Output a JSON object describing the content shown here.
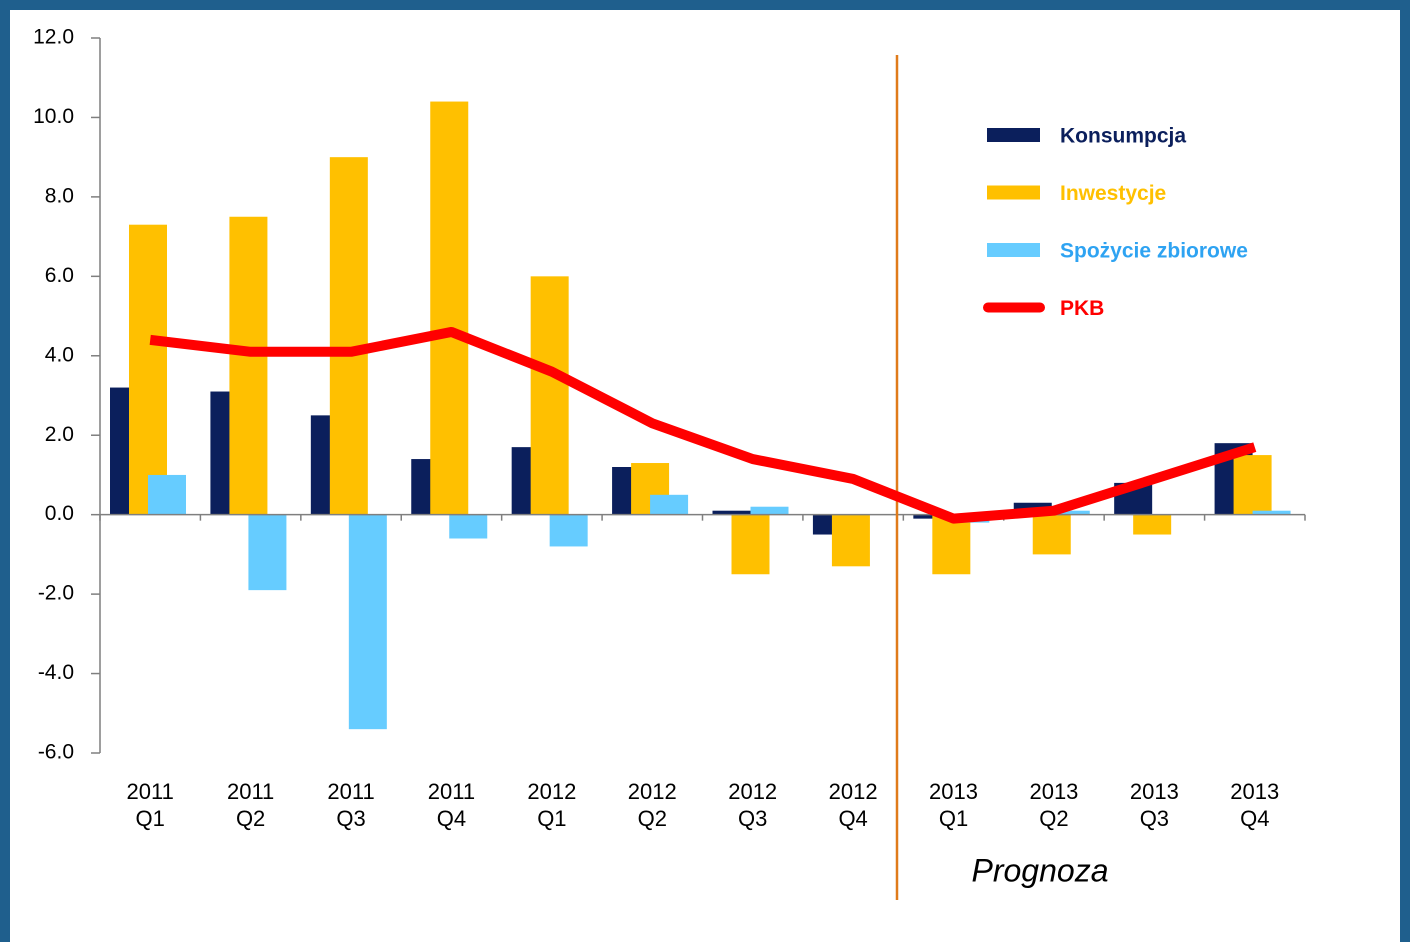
{
  "chart_data": {
    "type": "bar",
    "categories": [
      "2011\nQ1",
      "2011\nQ2",
      "2011\nQ3",
      "2011\nQ4",
      "2012\nQ1",
      "2012\nQ2",
      "2012\nQ3",
      "2012\nQ4",
      "2013\nQ1",
      "2013\nQ2",
      "2013\nQ3",
      "2013\nQ4"
    ],
    "series": [
      {
        "name": "Konsumpcja",
        "color": "#0b1f5c",
        "values": [
          3.2,
          3.1,
          2.5,
          1.4,
          1.7,
          1.2,
          0.1,
          -0.5,
          -0.1,
          0.3,
          0.8,
          1.8
        ]
      },
      {
        "name": "Inwestycje",
        "color": "#ffc000",
        "values": [
          7.3,
          7.5,
          9.0,
          10.4,
          6.0,
          1.3,
          -1.5,
          -1.3,
          -1.5,
          -1.0,
          -0.5,
          1.5
        ]
      },
      {
        "name": "Spożycie zbiorowe",
        "color": "#66ccff",
        "values": [
          1.0,
          -1.9,
          -5.4,
          -0.6,
          -0.8,
          0.5,
          0.2,
          0.0,
          -0.2,
          0.1,
          0.0,
          0.1
        ]
      },
      {
        "name": "PKB",
        "color": "#ff0000",
        "type": "line",
        "values": [
          4.4,
          4.1,
          4.1,
          4.6,
          3.6,
          2.3,
          1.4,
          0.9,
          -0.1,
          0.1,
          0.9,
          1.7
        ]
      }
    ],
    "ylim": [
      -6,
      12
    ],
    "yticks": [
      {
        "value": -6,
        "label": "-6.0"
      },
      {
        "value": -4,
        "label": "-4.0"
      },
      {
        "value": -2,
        "label": "-2.0"
      },
      {
        "value": 0,
        "label": "0.0"
      },
      {
        "value": 2,
        "label": "2.0"
      },
      {
        "value": 4,
        "label": "4.0"
      },
      {
        "value": 6,
        "label": "6.0"
      },
      {
        "value": 8,
        "label": "8.0"
      },
      {
        "value": 10,
        "label": "10.0"
      },
      {
        "value": 12,
        "label": "12.0"
      }
    ],
    "annotation": "Prognoza",
    "legend": "upper right"
  }
}
